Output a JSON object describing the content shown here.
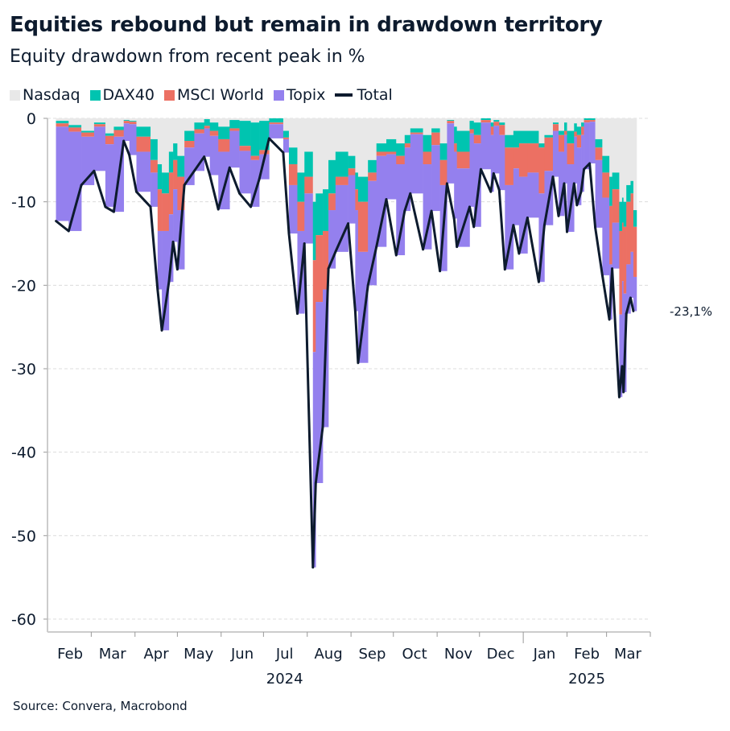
{
  "title": "Equities rebound but remain in drawdown territory",
  "subtitle": "Equity drawdown from recent peak in %",
  "source": "Source: Convera, Macrobond",
  "legend": [
    {
      "name": "Nasdaq",
      "color": "#e8e8e8",
      "kind": "area"
    },
    {
      "name": "DAX40",
      "color": "#00c4b0",
      "kind": "area"
    },
    {
      "name": "MSCI World",
      "color": "#ec7063",
      "kind": "area"
    },
    {
      "name": "Topix",
      "color": "#9480ee",
      "kind": "area"
    },
    {
      "name": "Total",
      "color": "#0d1b2e",
      "kind": "line"
    }
  ],
  "end_label": "-23,1%",
  "chart_data": {
    "type": "area",
    "stacked": true,
    "title": "Equities rebound but remain in drawdown territory",
    "subtitle": "Equity drawdown from recent peak in %",
    "xlabel": "",
    "ylabel": "",
    "ylim": [
      -60,
      0
    ],
    "yticks": [
      0,
      -10,
      -20,
      -30,
      -40,
      -50,
      -60
    ],
    "grid": true,
    "legend_position": "top-left",
    "x_ticks": [
      {
        "label": "Feb",
        "date": "2024-02-15"
      },
      {
        "label": "Mar",
        "date": "2024-03-16"
      },
      {
        "label": "Apr",
        "date": "2024-04-16"
      },
      {
        "label": "May",
        "date": "2024-05-16"
      },
      {
        "label": "Jun",
        "date": "2024-06-16"
      },
      {
        "label": "Jul",
        "date": "2024-07-16"
      },
      {
        "label": "Aug",
        "date": "2024-08-16"
      },
      {
        "label": "Sep",
        "date": "2024-09-16"
      },
      {
        "label": "Oct",
        "date": "2024-10-16"
      },
      {
        "label": "Nov",
        "date": "2024-11-16"
      },
      {
        "label": "Dec",
        "date": "2024-12-16"
      },
      {
        "label": "Jan",
        "date": "2025-01-16"
      },
      {
        "label": "Feb",
        "date": "2025-02-15"
      },
      {
        "label": "Mar",
        "date": "2025-03-16"
      }
    ],
    "year_labels": [
      {
        "label": "2024",
        "date": "2024-07-16"
      },
      {
        "label": "2025",
        "date": "2025-02-15"
      }
    ],
    "x": [
      "2024-02-05",
      "2024-02-14",
      "2024-02-23",
      "2024-03-03",
      "2024-03-11",
      "2024-03-17",
      "2024-03-24",
      "2024-03-28",
      "2024-04-02",
      "2024-04-12",
      "2024-04-17",
      "2024-04-20",
      "2024-04-25",
      "2024-04-28",
      "2024-05-01",
      "2024-05-06",
      "2024-05-13",
      "2024-05-20",
      "2024-05-24",
      "2024-05-30",
      "2024-06-07",
      "2024-06-14",
      "2024-06-22",
      "2024-06-28",
      "2024-07-05",
      "2024-07-15",
      "2024-07-19",
      "2024-07-25",
      "2024-07-30",
      "2024-08-05",
      "2024-08-07",
      "2024-08-12",
      "2024-08-16",
      "2024-08-21",
      "2024-08-30",
      "2024-09-04",
      "2024-09-06",
      "2024-09-13",
      "2024-09-19",
      "2024-09-26",
      "2024-10-03",
      "2024-10-09",
      "2024-10-13",
      "2024-10-22",
      "2024-10-28",
      "2024-11-03",
      "2024-11-08",
      "2024-11-13",
      "2024-11-15",
      "2024-11-24",
      "2024-11-27",
      "2024-12-02",
      "2024-12-09",
      "2024-12-11",
      "2024-12-15",
      "2024-12-19",
      "2024-12-25",
      "2024-12-29",
      "2025-01-04",
      "2025-01-12",
      "2025-01-16",
      "2025-01-22",
      "2025-01-26",
      "2025-01-30",
      "2025-02-01",
      "2025-02-06",
      "2025-02-08",
      "2025-02-11",
      "2025-02-13",
      "2025-02-17",
      "2025-02-21",
      "2025-02-26",
      "2025-03-03",
      "2025-03-05",
      "2025-03-10",
      "2025-03-12",
      "2025-03-13",
      "2025-03-15",
      "2025-03-18",
      "2025-03-20"
    ],
    "series": [
      {
        "name": "Nasdaq",
        "color": "#e8e8e8",
        "values": [
          -0.3,
          -0.8,
          -1.5,
          -0.5,
          -1.8,
          -1.0,
          -0.2,
          -0.3,
          -1.0,
          -2.5,
          -5.5,
          -6.5,
          -4.0,
          -3.0,
          -4.5,
          -1.5,
          -0.5,
          -0.1,
          -0.5,
          -1.0,
          -0.2,
          -0.3,
          -0.5,
          -0.3,
          0,
          -1.5,
          -3.5,
          -6.5,
          -4.0,
          -10.0,
          -9.0,
          -8.5,
          -5.0,
          -4.0,
          -4.5,
          -6.5,
          -7.0,
          -5.0,
          -3.0,
          -2.5,
          -3.0,
          -2.0,
          -1.2,
          -2.0,
          -1.2,
          -3.0,
          -0.2,
          -1.0,
          -1.5,
          -0.3,
          -0.5,
          0,
          -0.5,
          -0.2,
          -0.5,
          -2.0,
          -1.5,
          -1.5,
          -1.5,
          -3.0,
          -2.0,
          -0.5,
          -1.5,
          -0.5,
          -1.5,
          -0.6,
          -1.0,
          -0.5,
          0,
          0,
          -2.5,
          -4.5,
          -7.0,
          -6.5,
          -10.0,
          -9.5,
          -10.0,
          -8.0,
          -7.5,
          -11.0
        ]
      },
      {
        "name": "DAX40",
        "color": "#00c4b0",
        "values": [
          -0.3,
          -0.3,
          -0.2,
          -0.2,
          -0.3,
          -0.4,
          -0.1,
          -0.1,
          -1.2,
          -2.5,
          -3.0,
          -2.5,
          -2.5,
          -2.0,
          -2.5,
          -1.2,
          -0.8,
          -0.8,
          -1.0,
          -1.5,
          -1.0,
          -3.0,
          -4.0,
          -3.5,
          -0.5,
          -0.8,
          -2.0,
          -3.5,
          -3.0,
          -7.0,
          -5.0,
          -5.0,
          -4.0,
          -3.0,
          -1.5,
          -2.0,
          -3.0,
          -1.5,
          -1.0,
          -1.5,
          -1.5,
          -1.0,
          -0.5,
          -2.0,
          -0.5,
          -2.0,
          -0.1,
          -2.0,
          -2.5,
          -1.0,
          -1.5,
          -0.2,
          -0.5,
          -0.2,
          -0.3,
          -1.5,
          -2.0,
          -1.5,
          -1.5,
          -0.5,
          -0.3,
          -0.2,
          -0.5,
          -1.0,
          -1.5,
          -1.0,
          -1.0,
          -0.5,
          -0.2,
          -0.2,
          -1.0,
          -2.0,
          -3.5,
          -2.0,
          -3.5,
          -3.0,
          -3.0,
          -2.0,
          -1.5,
          -2.0
        ]
      },
      {
        "name": "MSCI World",
        "color": "#ec7063",
        "values": [
          -0.4,
          -0.5,
          -0.5,
          -0.3,
          -1.0,
          -0.8,
          -0.3,
          -0.3,
          -1.8,
          -1.5,
          -5.0,
          -4.5,
          -5.0,
          -3.5,
          -4.0,
          -0.8,
          -0.5,
          -0.3,
          -0.6,
          -1.5,
          -0.3,
          -0.6,
          -0.5,
          -0.5,
          -0.2,
          -0.2,
          -2.5,
          -3.5,
          -2.0,
          -11.0,
          -8.0,
          -7.0,
          -2.0,
          -1.0,
          -0.8,
          -2.5,
          -6.0,
          -1.0,
          -0.5,
          -0.3,
          -1.0,
          -0.5,
          -0.2,
          -1.5,
          -1.5,
          -3.0,
          -0.3,
          -1.0,
          -2.0,
          -0.5,
          -1.0,
          -0.3,
          -1.0,
          -0.5,
          -1.2,
          -4.5,
          -2.5,
          -4.0,
          -3.5,
          -5.5,
          -4.0,
          -0.8,
          -2.0,
          -0.5,
          -2.5,
          -0.6,
          -1.5,
          -1.0,
          -0.3,
          -0.2,
          -1.5,
          -3.0,
          -7.0,
          -4.0,
          -10.0,
          -7.0,
          -8.0,
          -7.5,
          -7.0,
          -6.0
        ]
      },
      {
        "name": "Topix",
        "color": "#9480ee",
        "values": [
          -11.3,
          -11.9,
          -5.8,
          -5.3,
          -7.5,
          -9.0,
          -2.1,
          -3.7,
          -4.8,
          -4.1,
          -7.0,
          -11.9,
          -8.1,
          -6.3,
          -7.1,
          -4.5,
          -4.5,
          -3.4,
          -4.7,
          -6.9,
          -4.4,
          -5.1,
          -5.6,
          -3.0,
          -1.7,
          -1.6,
          -5.8,
          -9.9,
          -6.0,
          -25.8,
          -21.7,
          -16.5,
          -7.0,
          -8.0,
          -5.8,
          -12.1,
          -13.3,
          -12.5,
          -10.9,
          -5.4,
          -10.9,
          -7.6,
          -7.1,
          -10.2,
          -7.9,
          -10.3,
          -7.2,
          -8.0,
          -9.4,
          -8.8,
          -10.0,
          -5.6,
          -6.8,
          -5.7,
          -6.6,
          -10.1,
          -6.8,
          -9.2,
          -5.4,
          -10.6,
          -6.5,
          -5.5,
          -7.7,
          -5.8,
          -8.1,
          -5.6,
          -6.9,
          -6.8,
          -5.6,
          -5.0,
          -8.1,
          -9.3,
          -6.6,
          -5.5,
          -9.9,
          -10.2,
          -11.8,
          -5.9,
          -5.5,
          -4.1
        ]
      },
      {
        "name": "Total",
        "color": "#0d1b2e",
        "values": [
          -12.3,
          -13.5,
          -8.0,
          -6.3,
          -10.6,
          -11.2,
          -2.7,
          -4.4,
          -8.8,
          -10.6,
          -20.5,
          -25.4,
          -19.6,
          -14.8,
          -18.1,
          -8.0,
          -6.3,
          -4.6,
          -6.8,
          -10.9,
          -5.9,
          -9.0,
          -10.6,
          -7.3,
          -2.4,
          -4.1,
          -13.8,
          -23.4,
          -15.0,
          -53.8,
          -43.7,
          -37.0,
          -18.0,
          -16.0,
          -12.6,
          -23.1,
          -29.3,
          -20.0,
          -15.4,
          -9.7,
          -16.4,
          -11.1,
          -9.0,
          -15.7,
          -11.1,
          -18.3,
          -7.8,
          -12.0,
          -15.4,
          -10.6,
          -13.0,
          -6.1,
          -8.8,
          -6.6,
          -8.6,
          -18.1,
          -12.8,
          -16.2,
          -11.9,
          -19.6,
          -12.8,
          -7.0,
          -11.7,
          -7.8,
          -13.6,
          -7.8,
          -10.4,
          -8.8,
          -6.1,
          -5.4,
          -13.1,
          -18.8,
          -24.1,
          -18.0,
          -33.4,
          -29.7,
          -32.8,
          -23.4,
          -21.5,
          -23.1
        ]
      }
    ]
  }
}
